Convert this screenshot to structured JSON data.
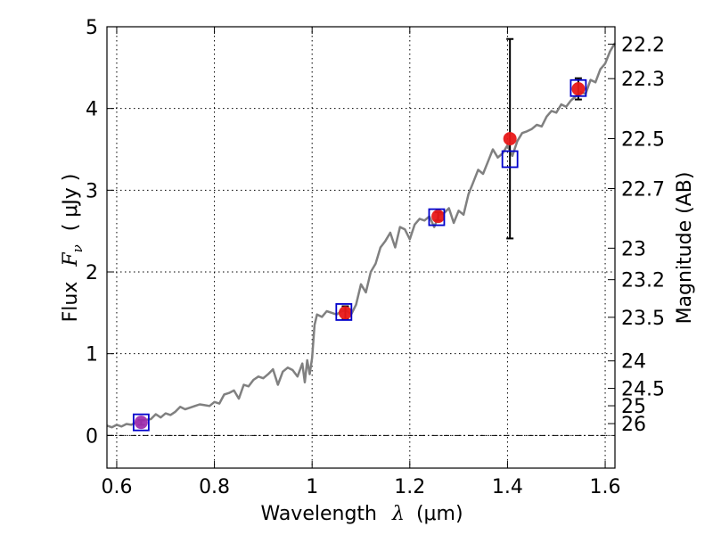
{
  "chart_data": {
    "type": "line",
    "xlabel": {
      "prefix": "Wavelength",
      "symbol": "λ",
      "unit": "(μm)"
    },
    "ylabel": {
      "prefix": "Flux",
      "symbol": "F",
      "subscript": "ν",
      "unit": "( μJy )"
    },
    "y2label": "Magnitude (AB)",
    "xlim": [
      0.58,
      1.62
    ],
    "ylim": [
      -0.4,
      5.0
    ],
    "grid": true,
    "x_ticks": [
      0.6,
      0.8,
      1.0,
      1.2,
      1.4,
      1.6
    ],
    "x_tick_labels": [
      "0.6",
      "0.8",
      "1",
      "1.2",
      "1.4",
      "1.6"
    ],
    "y_ticks": [
      0,
      1,
      2,
      3,
      4,
      5
    ],
    "y_tick_labels": [
      "0",
      "1",
      "2",
      "3",
      "4",
      "5"
    ],
    "magnitude_ticks": [
      22.2,
      22.3,
      22.5,
      22.7,
      23,
      23.2,
      23.5,
      24,
      24.5,
      25,
      26
    ],
    "magnitude_tick_labels": [
      "22.2",
      "22.3",
      "22.5",
      "22.7",
      "23",
      "23.2",
      "23.5",
      "24",
      "24.5",
      "25",
      "26"
    ],
    "series": [
      {
        "style": "model-spectrum-line",
        "color": "#808080",
        "x": [
          0.58,
          0.59,
          0.6,
          0.61,
          0.62,
          0.63,
          0.64,
          0.65,
          0.66,
          0.67,
          0.68,
          0.69,
          0.7,
          0.71,
          0.72,
          0.73,
          0.74,
          0.75,
          0.76,
          0.77,
          0.78,
          0.79,
          0.8,
          0.81,
          0.82,
          0.83,
          0.84,
          0.85,
          0.86,
          0.87,
          0.88,
          0.89,
          0.9,
          0.91,
          0.92,
          0.93,
          0.94,
          0.95,
          0.96,
          0.97,
          0.98,
          0.985,
          0.99,
          0.995,
          1.0,
          1.005,
          1.01,
          1.02,
          1.03,
          1.04,
          1.05,
          1.06,
          1.07,
          1.08,
          1.09,
          1.1,
          1.11,
          1.12,
          1.13,
          1.14,
          1.15,
          1.16,
          1.17,
          1.18,
          1.19,
          1.2,
          1.21,
          1.22,
          1.23,
          1.24,
          1.25,
          1.26,
          1.27,
          1.28,
          1.29,
          1.3,
          1.31,
          1.32,
          1.33,
          1.34,
          1.35,
          1.36,
          1.37,
          1.38,
          1.39,
          1.4,
          1.41,
          1.42,
          1.43,
          1.44,
          1.45,
          1.46,
          1.47,
          1.48,
          1.49,
          1.5,
          1.51,
          1.52,
          1.53,
          1.54,
          1.55,
          1.56,
          1.57,
          1.58,
          1.59,
          1.6,
          1.61,
          1.62
        ],
        "y": [
          0.12,
          0.1,
          0.13,
          0.11,
          0.14,
          0.13,
          0.16,
          0.17,
          0.19,
          0.2,
          0.26,
          0.22,
          0.27,
          0.25,
          0.29,
          0.35,
          0.32,
          0.34,
          0.36,
          0.38,
          0.37,
          0.36,
          0.41,
          0.39,
          0.5,
          0.52,
          0.55,
          0.45,
          0.62,
          0.6,
          0.68,
          0.72,
          0.7,
          0.75,
          0.81,
          0.62,
          0.78,
          0.83,
          0.8,
          0.72,
          0.88,
          0.65,
          0.92,
          0.75,
          0.95,
          1.35,
          1.48,
          1.45,
          1.52,
          1.5,
          1.48,
          1.52,
          1.53,
          1.48,
          1.6,
          1.85,
          1.75,
          2.0,
          2.1,
          2.3,
          2.38,
          2.48,
          2.3,
          2.55,
          2.52,
          2.4,
          2.58,
          2.65,
          2.63,
          2.68,
          2.55,
          2.7,
          2.72,
          2.78,
          2.6,
          2.75,
          2.7,
          2.95,
          3.1,
          3.25,
          3.2,
          3.35,
          3.5,
          3.4,
          3.45,
          3.55,
          3.42,
          3.6,
          3.7,
          3.72,
          3.75,
          3.8,
          3.78,
          3.9,
          3.97,
          3.95,
          4.05,
          4.02,
          4.1,
          4.15,
          4.2,
          4.18,
          4.35,
          4.32,
          4.48,
          4.55,
          4.7,
          4.8
        ]
      },
      {
        "style": "model-flux-squares",
        "color": "#0000cc",
        "x": [
          0.65,
          1.065,
          1.255,
          1.405,
          1.545
        ],
        "y": [
          0.16,
          1.51,
          2.67,
          3.38,
          4.25
        ]
      },
      {
        "style": "observed-flux-points",
        "color": "#e81818",
        "x": [
          0.65,
          1.068,
          1.258,
          1.405,
          1.545
        ],
        "y": [
          0.16,
          1.5,
          2.68,
          3.63,
          4.24
        ],
        "y_err": [
          0.03,
          0.08,
          0.05,
          1.22,
          0.13
        ]
      }
    ]
  }
}
